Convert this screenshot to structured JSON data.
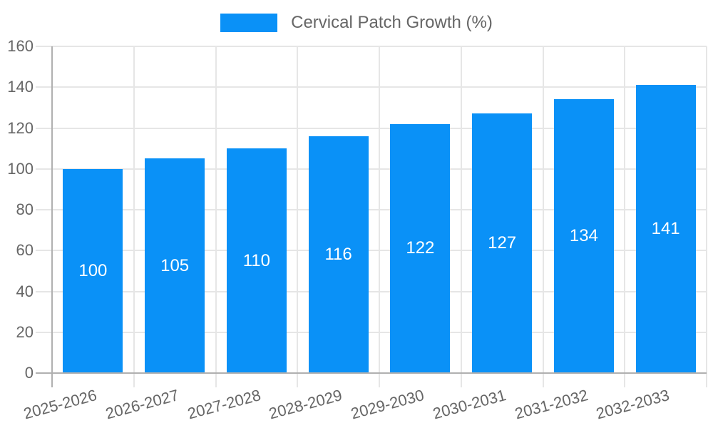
{
  "legend": {
    "label": "Cervical Patch Growth (%)"
  },
  "chart_data": {
    "type": "bar",
    "title": "",
    "legend_label": "Cervical Patch Growth (%)",
    "legend_position": "top-center",
    "categories": [
      "2025-2026",
      "2026-2027",
      "2027-2028",
      "2028-2029",
      "2029-2030",
      "2030-2031",
      "2031-2032",
      "2032-2033"
    ],
    "values": [
      100,
      105,
      110,
      116,
      122,
      127,
      134,
      141
    ],
    "xlabel": "",
    "ylabel": "",
    "ylim": [
      0,
      160
    ],
    "ytick_step": 20,
    "ytick_labels": [
      "0",
      "20",
      "40",
      "60",
      "80",
      "100",
      "120",
      "140",
      "160"
    ],
    "grid": true,
    "value_labels_inside_bars": true,
    "colors": {
      "bar": "#0a91f7",
      "gridline": "#e6e6e6",
      "axis_line": "#b0b0b0",
      "tick_label": "#666666",
      "value_label": "#ffffff",
      "background": "#ffffff"
    }
  }
}
